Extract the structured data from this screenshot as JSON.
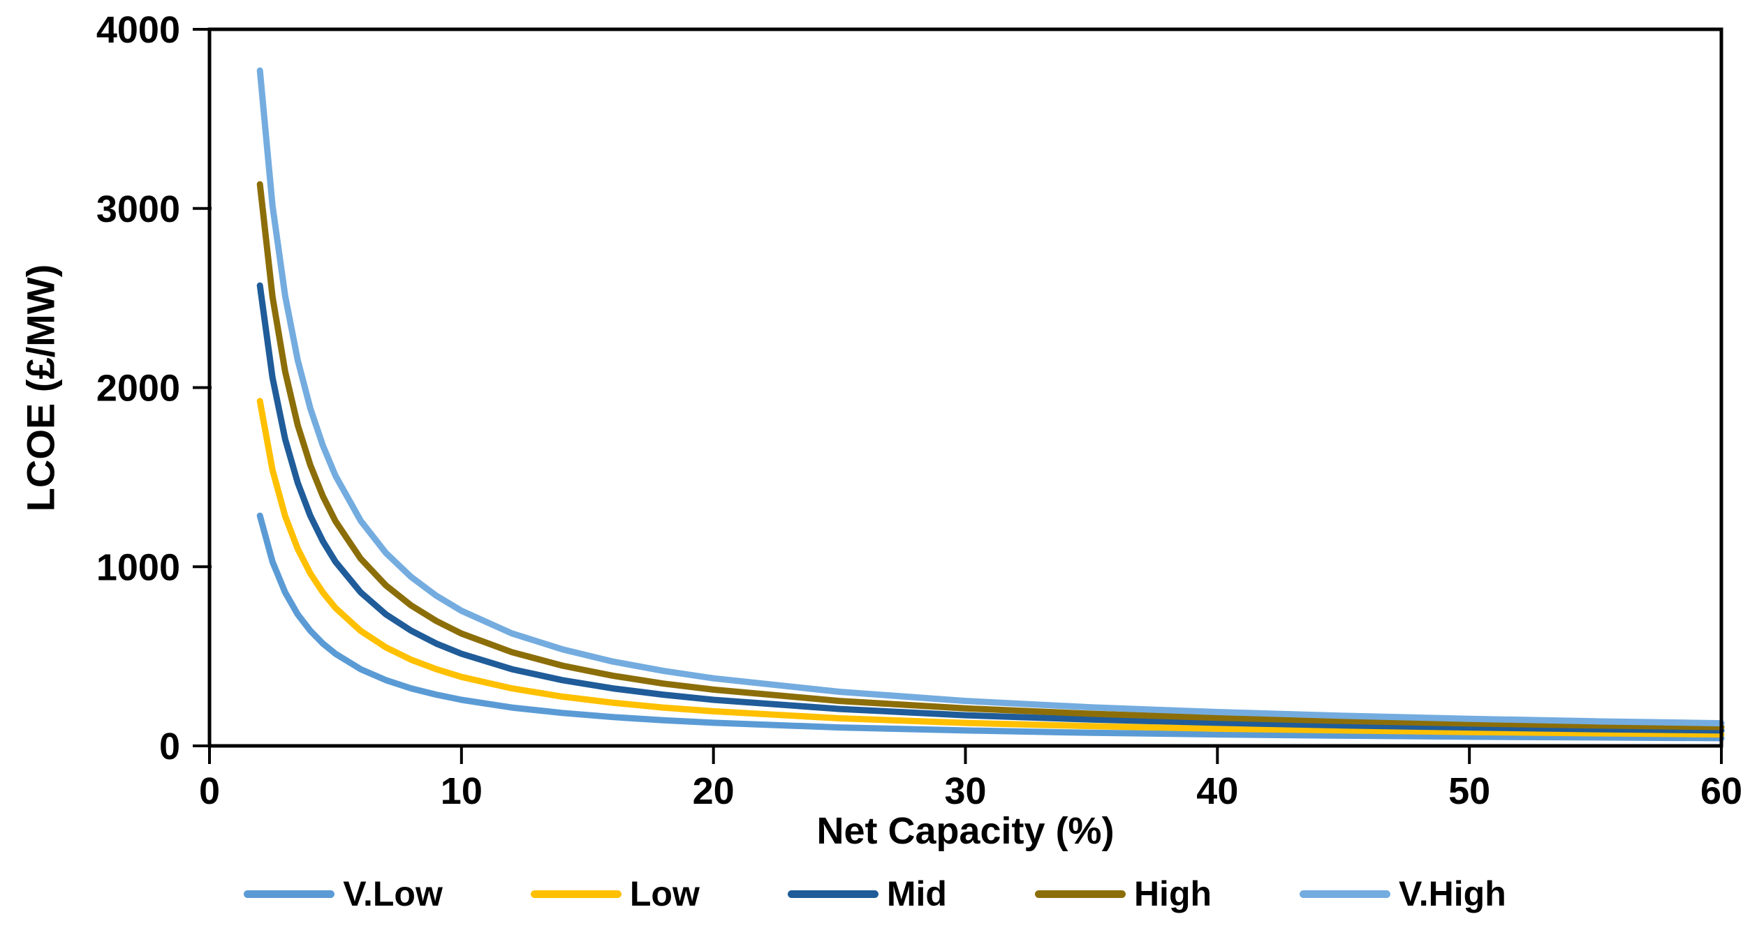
{
  "chart_data": {
    "type": "line",
    "title": "",
    "xlabel": "Net Capacity (%)",
    "ylabel": "LCOE (£/MW)",
    "xlim": [
      0,
      60
    ],
    "ylim": [
      0,
      4000
    ],
    "x_ticks": [
      0,
      10,
      20,
      30,
      40,
      50,
      60
    ],
    "y_ticks": [
      0,
      1000,
      2000,
      3000,
      4000
    ],
    "grid": false,
    "legend_position": "bottom",
    "axis_color": "#000000",
    "x": [
      2,
      2.5,
      3,
      3.5,
      4,
      4.5,
      5,
      6,
      7,
      8,
      9,
      10,
      12,
      14,
      16,
      18,
      20,
      25,
      30,
      35,
      40,
      45,
      50,
      55,
      60
    ],
    "series": [
      {
        "name": "V.Low",
        "color": "#5B9BD5",
        "values": [
          1285,
          1028,
          857,
          734,
          643,
          571,
          514,
          428,
          367,
          321,
          286,
          257,
          214,
          184,
          161,
          143,
          129,
          103,
          86,
          73,
          64,
          57,
          51,
          47,
          43
        ]
      },
      {
        "name": "Low",
        "color": "#FFC000",
        "values": [
          1925,
          1540,
          1283,
          1100,
          963,
          856,
          770,
          642,
          550,
          481,
          428,
          385,
          321,
          275,
          241,
          214,
          193,
          154,
          128,
          110,
          96,
          86,
          77,
          70,
          64
        ]
      },
      {
        "name": "Mid",
        "color": "#1F5C99",
        "values": [
          2570,
          2056,
          1713,
          1469,
          1285,
          1142,
          1028,
          857,
          734,
          643,
          571,
          514,
          428,
          367,
          321,
          286,
          257,
          206,
          171,
          147,
          129,
          114,
          103,
          93,
          86
        ]
      },
      {
        "name": "High",
        "color": "#8C6E09",
        "values": [
          3135,
          2508,
          2090,
          1791,
          1568,
          1393,
          1254,
          1045,
          896,
          784,
          697,
          627,
          523,
          448,
          392,
          348,
          314,
          251,
          209,
          179,
          157,
          139,
          125,
          114,
          105
        ]
      },
      {
        "name": "V.High",
        "color": "#74ACDF",
        "values": [
          3770,
          3016,
          2513,
          2154,
          1885,
          1676,
          1508,
          1257,
          1077,
          943,
          838,
          754,
          628,
          539,
          471,
          419,
          377,
          302,
          251,
          215,
          189,
          168,
          151,
          137,
          126
        ]
      }
    ]
  }
}
